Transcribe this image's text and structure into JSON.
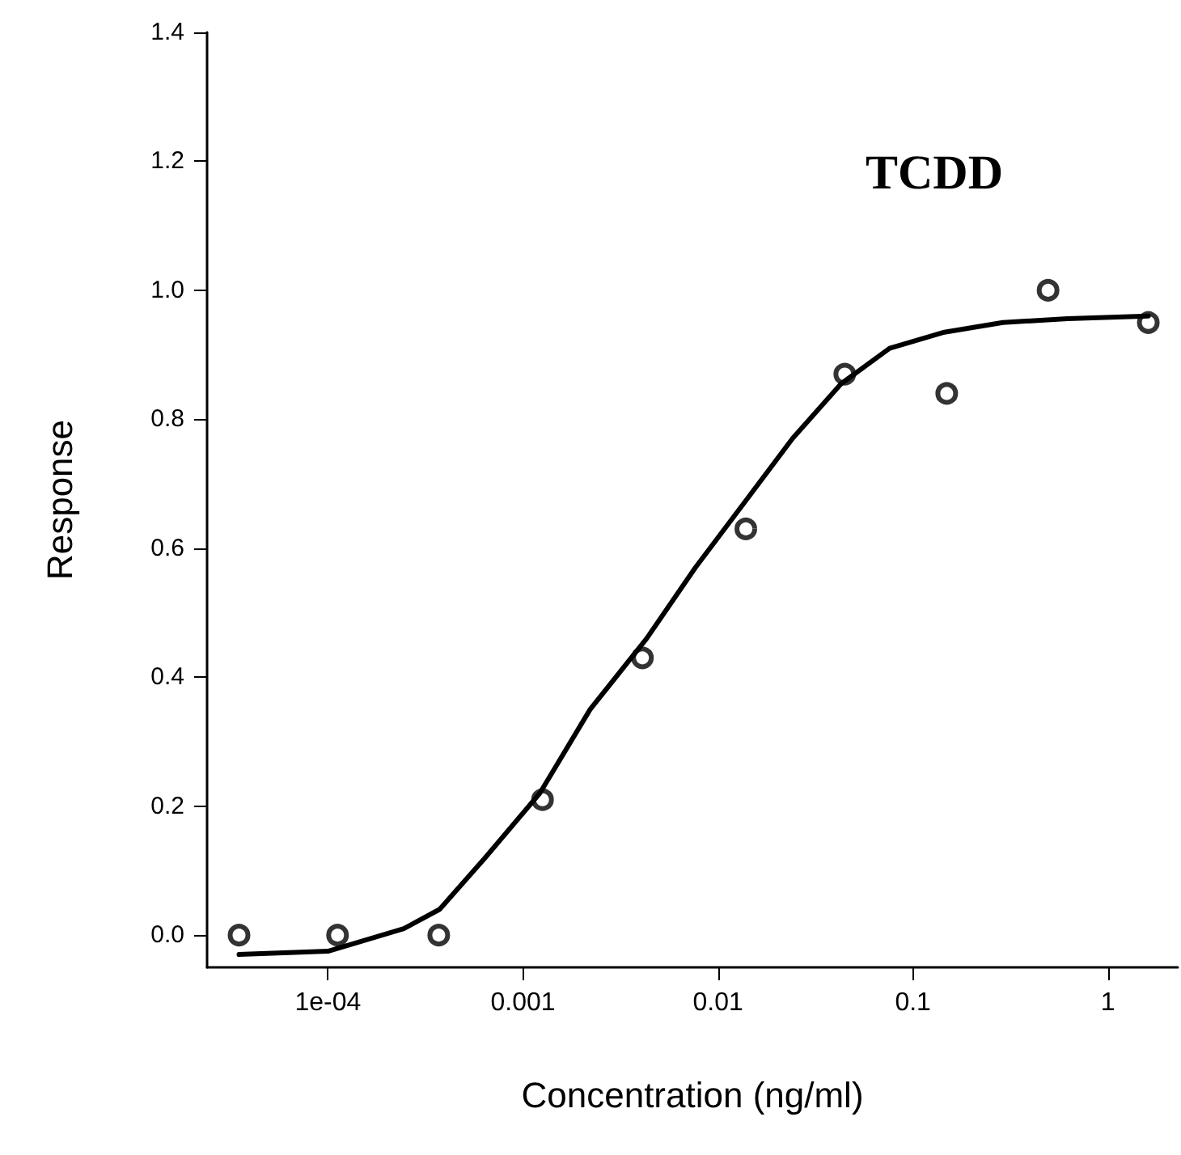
{
  "chart_data": {
    "type": "scatter",
    "xlabel": "Concentration (ng/ml)",
    "ylabel": "Response",
    "annotations": [
      "TCDD"
    ],
    "log": "x",
    "grid": false,
    "xlim": [
      2.4e-05,
      2.28
    ],
    "xticks": [
      {
        "value": 0.0001,
        "label": "1e-04"
      },
      0.001,
      0.01,
      0.1,
      1
    ],
    "ylim": [
      -0.05,
      1.4
    ],
    "yticks": [
      {
        "value": 0,
        "label": "0.0"
      },
      0.2,
      0.4,
      0.6,
      0.8,
      {
        "value": 1,
        "label": "1.0"
      },
      1.2,
      1.4
    ],
    "series": [
      {
        "marker": "circle",
        "color": "#000000",
        "x": [
          3.5e-05,
          0.000112,
          0.00037,
          0.00126,
          0.0041,
          0.0139,
          0.0447,
          0.149,
          0.493,
          1.61
        ],
        "values": [
          0,
          0,
          0,
          0.21,
          0.43,
          0.63,
          0.87,
          0.84,
          1.0,
          0.95
        ]
      },
      {
        "type": "line",
        "marker": "none",
        "color": "#000000",
        "line_style": "solid",
        "x": [
          3.5e-05,
          0.0001,
          0.000245,
          0.000374,
          0.00064,
          0.00122,
          0.00221,
          0.00431,
          0.00766,
          0.0136,
          0.0241,
          0.0428,
          0.0759,
          0.145,
          0.289,
          0.621,
          1.61
        ],
        "values": [
          -0.03,
          -0.025,
          0.01,
          0.04,
          0.12,
          0.22,
          0.35,
          0.46,
          0.57,
          0.67,
          0.77,
          0.855,
          0.91,
          0.935,
          0.95,
          0.956,
          0.96
        ]
      }
    ]
  }
}
